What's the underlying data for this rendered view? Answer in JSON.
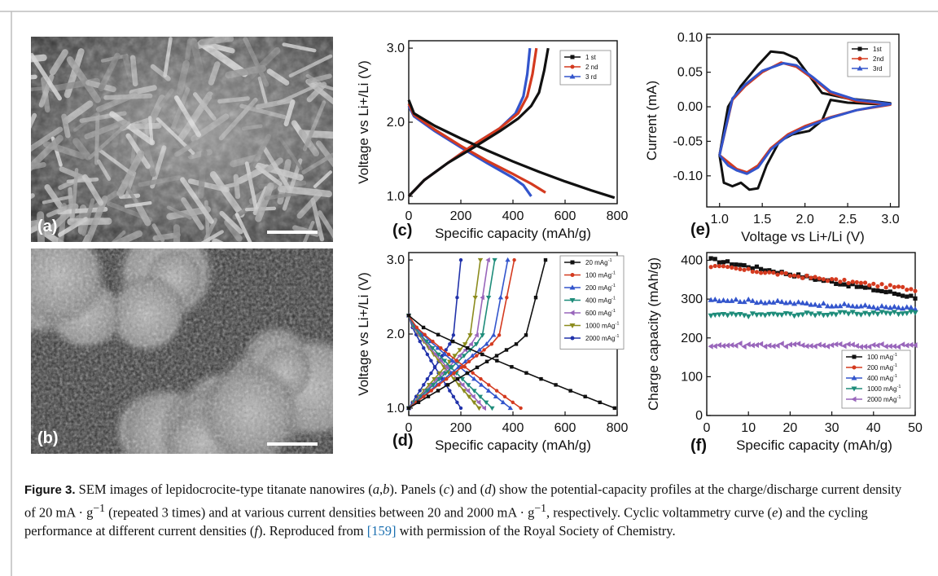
{
  "panels": {
    "a": {
      "letter": "(a)"
    },
    "b": {
      "letter": "(b)"
    },
    "c": {
      "letter": "(c)"
    },
    "d": {
      "letter": "(d)"
    },
    "e": {
      "letter": "(e)"
    },
    "f": {
      "letter": "(f)"
    }
  },
  "caption": {
    "lead": "Figure 3.",
    "p1": "SEM images of lepidocrocite-type titanate nanowires (",
    "ab": "a",
    "p1b": ",",
    "ab2": "b",
    "p2": "). Panels (",
    "c": "c",
    "p3": ") and (",
    "d": "d",
    "p4": ") show the potential-capacity profiles at the charge/discharge current density of 20 mA · g",
    "sup1": "−1",
    "p5": " (repeated 3 times) and at various current densities between 20 and 2000 mA · g",
    "sup2": "−1",
    "p6": ", respectively. Cyclic voltammetry curve (",
    "e": "e",
    "p7": ") and the cycling performance at different current densities (",
    "f": "f",
    "p8": "). Reproduced from ",
    "ref": "[159]",
    "p9": " with permission of the Royal Society of Chemistry."
  },
  "chart_data": [
    {
      "id": "c",
      "type": "line",
      "xlabel": "Specific capacity (mAh/g)",
      "ylabel": "Voltage vs Li+/Li (V)",
      "xlim": [
        0,
        800
      ],
      "ylim": [
        0.9,
        3.1
      ],
      "xticks": [
        "0",
        "200",
        "400",
        "600",
        "800"
      ],
      "xtick_values": [
        0,
        200,
        400,
        600,
        800
      ],
      "yticks": [
        "1.0",
        "2.0",
        "3.0"
      ],
      "ytick_values": [
        1.0,
        2.0,
        3.0
      ],
      "legend": "top-right",
      "series": [
        {
          "name": "1 st",
          "color": "#111111",
          "discharge": [
            [
              0,
              2.3
            ],
            [
              20,
              2.12
            ],
            [
              100,
              1.95
            ],
            [
              200,
              1.78
            ],
            [
              300,
              1.62
            ],
            [
              400,
              1.47
            ],
            [
              500,
              1.33
            ],
            [
              600,
              1.2
            ],
            [
              700,
              1.08
            ],
            [
              790,
              0.98
            ]
          ],
          "charge": [
            [
              0,
              1.0
            ],
            [
              60,
              1.22
            ],
            [
              150,
              1.45
            ],
            [
              250,
              1.66
            ],
            [
              350,
              1.88
            ],
            [
              420,
              2.05
            ],
            [
              470,
              2.22
            ],
            [
              500,
              2.4
            ],
            [
              520,
              2.7
            ],
            [
              535,
              3.0
            ]
          ]
        },
        {
          "name": "2 nd",
          "color": "#d43a1f",
          "discharge": [
            [
              0,
              2.25
            ],
            [
              20,
              2.1
            ],
            [
              100,
              1.9
            ],
            [
              200,
              1.68
            ],
            [
              300,
              1.48
            ],
            [
              400,
              1.3
            ],
            [
              470,
              1.17
            ],
            [
              525,
              1.05
            ]
          ],
          "charge": [
            [
              0,
              1.0
            ],
            [
              60,
              1.22
            ],
            [
              150,
              1.45
            ],
            [
              250,
              1.7
            ],
            [
              350,
              1.92
            ],
            [
              420,
              2.12
            ],
            [
              455,
              2.35
            ],
            [
              475,
              2.65
            ],
            [
              490,
              3.0
            ]
          ]
        },
        {
          "name": "3 rd",
          "color": "#3355cc",
          "discharge": [
            [
              0,
              2.22
            ],
            [
              20,
              2.08
            ],
            [
              100,
              1.88
            ],
            [
              200,
              1.66
            ],
            [
              300,
              1.45
            ],
            [
              400,
              1.25
            ],
            [
              440,
              1.15
            ],
            [
              470,
              1.0
            ]
          ],
          "charge": [
            [
              0,
              1.0
            ],
            [
              60,
              1.22
            ],
            [
              150,
              1.45
            ],
            [
              250,
              1.7
            ],
            [
              350,
              1.92
            ],
            [
              410,
              2.12
            ],
            [
              440,
              2.35
            ],
            [
              455,
              2.65
            ],
            [
              465,
              3.0
            ]
          ]
        }
      ]
    },
    {
      "id": "d",
      "type": "line",
      "xlabel": "Specific capacity (mAh/g)",
      "ylabel": "Voltage vs Li+/Li (V)",
      "xlim": [
        0,
        800
      ],
      "ylim": [
        0.9,
        3.1
      ],
      "xticks": [
        "0",
        "200",
        "400",
        "600",
        "800"
      ],
      "xtick_values": [
        0,
        200,
        400,
        600,
        800
      ],
      "yticks": [
        "1.0",
        "2.0",
        "3.0"
      ],
      "ytick_values": [
        1.0,
        2.0,
        3.0
      ],
      "legend": "top-right",
      "series": [
        {
          "name": "20 mAg",
          "sup": "-1",
          "color": "#111111",
          "dmax": 790,
          "cmax": 525
        },
        {
          "name": "100 mAg",
          "sup": "-1",
          "color": "#d43a1f",
          "dmax": 430,
          "cmax": 405
        },
        {
          "name": "200 mAg",
          "sup": "-1",
          "color": "#3355cc",
          "dmax": 390,
          "cmax": 380
        },
        {
          "name": "400 mAg",
          "sup": "-1",
          "color": "#1e8c7a",
          "dmax": 320,
          "cmax": 330
        },
        {
          "name": "600 mAg",
          "sup": "-1",
          "color": "#9966bb",
          "dmax": 290,
          "cmax": 305
        },
        {
          "name": "1000 mAg",
          "sup": "-1",
          "color": "#8c8c1e",
          "dmax": 270,
          "cmax": 275
        },
        {
          "name": "2000 mAg",
          "sup": "-1",
          "color": "#2233aa",
          "dmax": 200,
          "cmax": 200
        }
      ]
    },
    {
      "id": "e",
      "type": "line",
      "xlabel": "Voltage vs Li+/Li (V)",
      "ylabel": "Current (mA)",
      "xlim": [
        0.85,
        3.1
      ],
      "ylim": [
        -0.145,
        0.105
      ],
      "xticks": [
        "1.0",
        "1.5",
        "2.0",
        "2.5",
        "3.0"
      ],
      "xtick_values": [
        1.0,
        1.5,
        2.0,
        2.5,
        3.0
      ],
      "yticks": [
        "0.10",
        "0.05",
        "0.00",
        "-0.05",
        "-0.10"
      ],
      "ytick_values": [
        0.1,
        0.05,
        0.0,
        -0.05,
        -0.1
      ],
      "legend": "top-right",
      "series": [
        {
          "name": "1st",
          "color": "#111111",
          "points": [
            [
              1.0,
              -0.07
            ],
            [
              1.05,
              -0.11
            ],
            [
              1.15,
              -0.115
            ],
            [
              1.25,
              -0.11
            ],
            [
              1.35,
              -0.12
            ],
            [
              1.45,
              -0.118
            ],
            [
              1.55,
              -0.085
            ],
            [
              1.7,
              -0.05
            ],
            [
              1.85,
              -0.04
            ],
            [
              2.05,
              -0.035
            ],
            [
              2.2,
              -0.02
            ],
            [
              2.3,
              0.01
            ],
            [
              2.5,
              0.006
            ],
            [
              2.8,
              0.004
            ],
            [
              3.0,
              0.005
            ],
            [
              2.8,
              0.008
            ],
            [
              2.5,
              0.012
            ],
            [
              2.2,
              0.02
            ],
            [
              2.05,
              0.045
            ],
            [
              1.9,
              0.07
            ],
            [
              1.75,
              0.078
            ],
            [
              1.6,
              0.08
            ],
            [
              1.45,
              0.06
            ],
            [
              1.25,
              0.03
            ],
            [
              1.1,
              0.0
            ],
            [
              1.0,
              -0.07
            ]
          ]
        },
        {
          "name": "2nd",
          "color": "#d43a1f",
          "points": [
            [
              1.0,
              -0.07
            ],
            [
              1.1,
              -0.08
            ],
            [
              1.2,
              -0.09
            ],
            [
              1.32,
              -0.095
            ],
            [
              1.45,
              -0.085
            ],
            [
              1.6,
              -0.06
            ],
            [
              1.8,
              -0.04
            ],
            [
              2.0,
              -0.028
            ],
            [
              2.3,
              -0.015
            ],
            [
              2.6,
              -0.005
            ],
            [
              3.0,
              0.003
            ],
            [
              2.6,
              0.008
            ],
            [
              2.3,
              0.02
            ],
            [
              2.1,
              0.04
            ],
            [
              1.9,
              0.058
            ],
            [
              1.72,
              0.064
            ],
            [
              1.5,
              0.05
            ],
            [
              1.3,
              0.03
            ],
            [
              1.15,
              0.01
            ],
            [
              1.0,
              -0.07
            ]
          ]
        },
        {
          "name": "3rd",
          "color": "#3355cc",
          "points": [
            [
              1.0,
              -0.07
            ],
            [
              1.1,
              -0.085
            ],
            [
              1.2,
              -0.092
            ],
            [
              1.32,
              -0.097
            ],
            [
              1.45,
              -0.088
            ],
            [
              1.6,
              -0.062
            ],
            [
              1.8,
              -0.042
            ],
            [
              2.0,
              -0.03
            ],
            [
              2.3,
              -0.016
            ],
            [
              2.6,
              -0.005
            ],
            [
              3.0,
              0.004
            ],
            [
              2.6,
              0.01
            ],
            [
              2.3,
              0.022
            ],
            [
              2.1,
              0.042
            ],
            [
              1.9,
              0.06
            ],
            [
              1.75,
              0.063
            ],
            [
              1.5,
              0.052
            ],
            [
              1.3,
              0.032
            ],
            [
              1.15,
              0.012
            ],
            [
              1.0,
              -0.07
            ]
          ]
        }
      ]
    },
    {
      "id": "f",
      "type": "scatter",
      "xlabel": "Specific capacity (mAh/g)",
      "ylabel": "Charge capacity (mAh/g)",
      "xlim": [
        0,
        50
      ],
      "ylim": [
        0,
        420
      ],
      "xticks": [
        "0",
        "10",
        "20",
        "30",
        "40",
        "50"
      ],
      "xtick_values": [
        0,
        10,
        20,
        30,
        40,
        50
      ],
      "yticks": [
        "0",
        "100",
        "200",
        "300",
        "400"
      ],
      "ytick_values": [
        0,
        100,
        200,
        300,
        400
      ],
      "legend": "bottom-right",
      "series": [
        {
          "name": "100 mAg",
          "sup": "-1",
          "color": "#111111",
          "marker": "square",
          "start": 402,
          "end": 305
        },
        {
          "name": "200 mAg",
          "sup": "-1",
          "color": "#d43a1f",
          "marker": "circle",
          "start": 385,
          "end": 325
        },
        {
          "name": "400 mAg",
          "sup": "-1",
          "color": "#3355cc",
          "marker": "triangle-up",
          "start": 300,
          "end": 275
        },
        {
          "name": "1000 mAg",
          "sup": "-1",
          "color": "#1e8c7a",
          "marker": "triangle-down",
          "start": 258,
          "end": 265
        },
        {
          "name": "2000 mAg",
          "sup": "-1",
          "color": "#9966bb",
          "marker": "triangle-left",
          "start": 182,
          "end": 180
        }
      ]
    }
  ]
}
